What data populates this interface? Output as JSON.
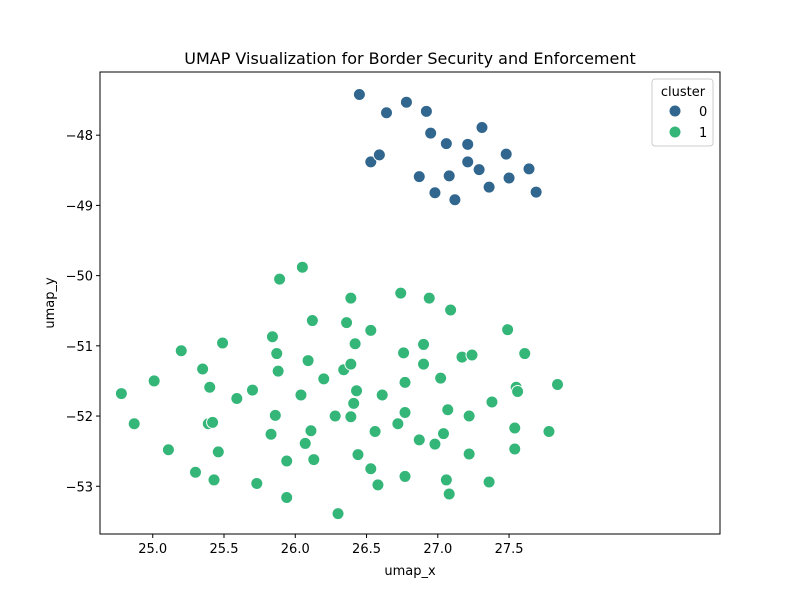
{
  "chart_data": {
    "type": "scatter",
    "title": "UMAP Visualization for Border Security and Enforcement",
    "xlabel": "umap_x",
    "ylabel": "umap_y",
    "xlim": [
      24.63,
      28.98
    ],
    "ylim": [
      -53.68,
      -47.1
    ],
    "xticks": [
      25.0,
      25.5,
      26.0,
      26.5,
      27.0,
      27.5
    ],
    "xtick_labels": [
      "25.0",
      "25.5",
      "26.0",
      "26.5",
      "27.0",
      "27.5"
    ],
    "yticks": [
      -53,
      -52,
      -51,
      -50,
      -49,
      -48
    ],
    "ytick_labels": [
      "−53",
      "−52",
      "−51",
      "−50",
      "−49",
      "−48"
    ],
    "grid": false,
    "legend": {
      "title": "cluster",
      "placement": "top-right"
    },
    "series": [
      {
        "name": "0",
        "color": "#31668e",
        "points": [
          [
            26.45,
            -47.42
          ],
          [
            26.64,
            -47.68
          ],
          [
            26.78,
            -47.53
          ],
          [
            26.92,
            -47.66
          ],
          [
            26.95,
            -47.97
          ],
          [
            27.06,
            -48.12
          ],
          [
            27.21,
            -48.13
          ],
          [
            27.31,
            -47.89
          ],
          [
            27.21,
            -48.38
          ],
          [
            27.29,
            -48.49
          ],
          [
            27.48,
            -48.27
          ],
          [
            27.64,
            -48.48
          ],
          [
            26.53,
            -48.38
          ],
          [
            26.59,
            -48.28
          ],
          [
            26.87,
            -48.59
          ],
          [
            26.98,
            -48.82
          ],
          [
            27.08,
            -48.58
          ],
          [
            27.12,
            -48.92
          ],
          [
            27.36,
            -48.74
          ],
          [
            27.5,
            -48.61
          ],
          [
            27.69,
            -48.81
          ]
        ]
      },
      {
        "name": "1",
        "color": "#34b679",
        "points": [
          [
            25.89,
            -50.05
          ],
          [
            26.05,
            -49.88
          ],
          [
            26.74,
            -50.25
          ],
          [
            26.94,
            -50.32
          ],
          [
            26.39,
            -50.32
          ],
          [
            27.09,
            -50.49
          ],
          [
            26.12,
            -50.64
          ],
          [
            26.36,
            -50.67
          ],
          [
            26.53,
            -50.78
          ],
          [
            27.49,
            -50.77
          ],
          [
            25.84,
            -50.87
          ],
          [
            26.42,
            -50.97
          ],
          [
            26.9,
            -50.98
          ],
          [
            25.49,
            -50.96
          ],
          [
            25.2,
            -51.07
          ],
          [
            25.87,
            -51.11
          ],
          [
            26.09,
            -51.21
          ],
          [
            26.76,
            -51.1
          ],
          [
            27.17,
            -51.16
          ],
          [
            27.24,
            -51.13
          ],
          [
            27.61,
            -51.11
          ],
          [
            25.88,
            -51.36
          ],
          [
            25.35,
            -51.33
          ],
          [
            26.34,
            -51.34
          ],
          [
            26.39,
            -51.26
          ],
          [
            26.9,
            -51.26
          ],
          [
            26.2,
            -51.47
          ],
          [
            27.02,
            -51.46
          ],
          [
            25.01,
            -51.5
          ],
          [
            26.77,
            -51.52
          ],
          [
            25.7,
            -51.63
          ],
          [
            26.43,
            -51.64
          ],
          [
            24.78,
            -51.68
          ],
          [
            25.4,
            -51.59
          ],
          [
            26.04,
            -51.7
          ],
          [
            26.61,
            -51.7
          ],
          [
            25.59,
            -51.75
          ],
          [
            26.41,
            -51.82
          ],
          [
            27.38,
            -51.8
          ],
          [
            27.55,
            -51.59
          ],
          [
            27.56,
            -51.65
          ],
          [
            27.84,
            -51.55
          ],
          [
            25.86,
            -51.99
          ],
          [
            26.28,
            -52.0
          ],
          [
            26.39,
            -52.01
          ],
          [
            26.77,
            -51.95
          ],
          [
            27.07,
            -51.91
          ],
          [
            27.22,
            -52.0
          ],
          [
            24.87,
            -52.11
          ],
          [
            25.39,
            -52.11
          ],
          [
            25.42,
            -52.09
          ],
          [
            25.83,
            -52.26
          ],
          [
            26.11,
            -52.21
          ],
          [
            26.56,
            -52.22
          ],
          [
            26.72,
            -52.11
          ],
          [
            27.04,
            -52.25
          ],
          [
            27.54,
            -52.17
          ],
          [
            27.78,
            -52.22
          ],
          [
            26.07,
            -52.39
          ],
          [
            26.87,
            -52.34
          ],
          [
            26.98,
            -52.4
          ],
          [
            25.46,
            -52.51
          ],
          [
            25.11,
            -52.48
          ],
          [
            25.94,
            -52.64
          ],
          [
            26.13,
            -52.62
          ],
          [
            26.44,
            -52.55
          ],
          [
            27.22,
            -52.54
          ],
          [
            27.54,
            -52.47
          ],
          [
            26.53,
            -52.75
          ],
          [
            25.3,
            -52.8
          ],
          [
            25.43,
            -52.91
          ],
          [
            25.73,
            -52.96
          ],
          [
            26.58,
            -52.98
          ],
          [
            26.77,
            -52.86
          ],
          [
            27.06,
            -52.91
          ],
          [
            27.36,
            -52.94
          ],
          [
            25.94,
            -53.16
          ],
          [
            27.08,
            -53.11
          ],
          [
            26.3,
            -53.39
          ]
        ]
      }
    ]
  }
}
